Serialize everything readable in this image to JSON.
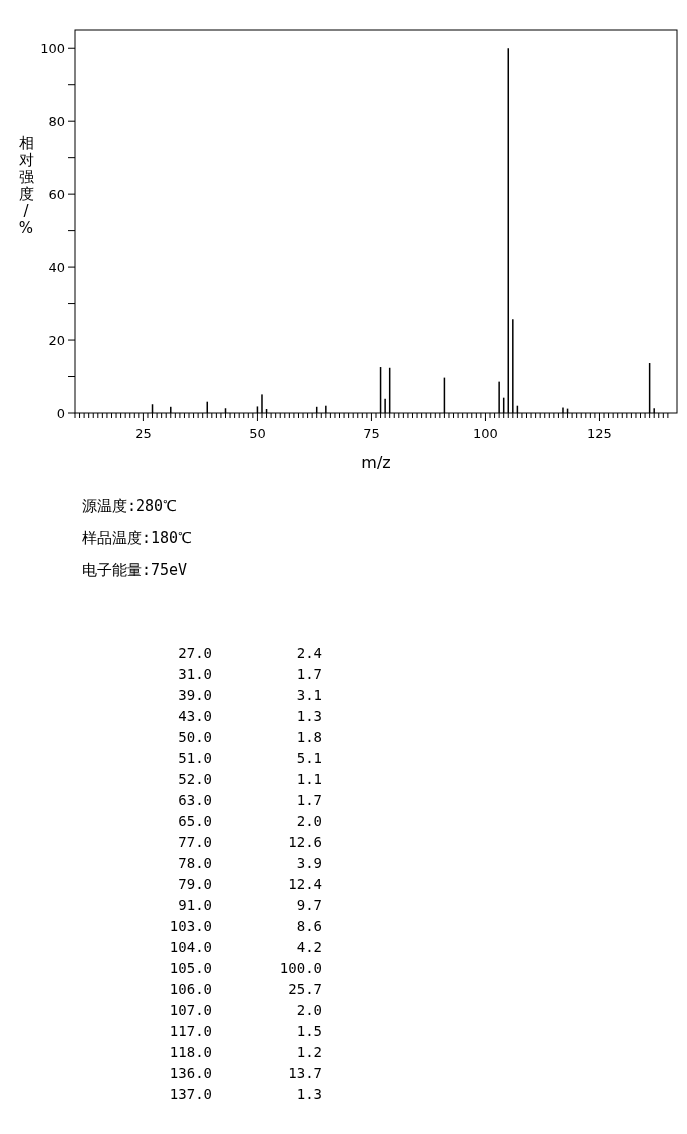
{
  "chart_data": {
    "type": "bar",
    "xlabel": "m/z",
    "ylabel": "相对强度/%",
    "x": [
      27,
      31,
      39,
      43,
      50,
      51,
      52,
      63,
      65,
      77,
      78,
      79,
      91,
      103,
      104,
      105,
      106,
      107,
      117,
      118,
      136,
      137
    ],
    "values": [
      2.4,
      1.7,
      3.1,
      1.3,
      1.8,
      5.1,
      1.1,
      1.7,
      2.0,
      12.6,
      3.9,
      12.4,
      9.7,
      8.6,
      4.2,
      100.0,
      25.7,
      2.0,
      1.5,
      1.2,
      13.7,
      1.3
    ],
    "color": "#000000",
    "xlim": [
      10,
      142
    ],
    "ylim": [
      0,
      105
    ],
    "yticks": [
      0,
      {
        "value": 10,
        "label": null
      },
      20,
      {
        "value": 30,
        "label": null
      },
      40,
      {
        "value": 50,
        "label": null
      },
      60,
      {
        "value": 70,
        "label": null
      },
      80,
      {
        "value": 90,
        "label": null
      },
      100
    ],
    "xticks": [
      {
        "value": 10,
        "label": null
      },
      {
        "value": 11,
        "label": null
      },
      {
        "value": 12,
        "label": null
      },
      {
        "value": 13,
        "label": null
      },
      {
        "value": 14,
        "label": null
      },
      {
        "value": 15,
        "label": null
      },
      {
        "value": 16,
        "label": null
      },
      {
        "value": 17,
        "label": null
      },
      {
        "value": 18,
        "label": null
      },
      {
        "value": 19,
        "label": null
      },
      {
        "value": 20,
        "label": null
      },
      {
        "value": 21,
        "label": null
      },
      {
        "value": 22,
        "label": null
      },
      {
        "value": 23,
        "label": null
      },
      {
        "value": 24,
        "label": null
      },
      25,
      {
        "value": 26,
        "label": null
      },
      {
        "value": 27,
        "label": null
      },
      {
        "value": 28,
        "label": null
      },
      {
        "value": 29,
        "label": null
      },
      {
        "value": 30,
        "label": null
      },
      {
        "value": 31,
        "label": null
      },
      {
        "value": 32,
        "label": null
      },
      {
        "value": 33,
        "label": null
      },
      {
        "value": 34,
        "label": null
      },
      {
        "value": 35,
        "label": null
      },
      {
        "value": 36,
        "label": null
      },
      {
        "value": 37,
        "label": null
      },
      {
        "value": 38,
        "label": null
      },
      {
        "value": 39,
        "label": null
      },
      {
        "value": 40,
        "label": null
      },
      {
        "value": 41,
        "label": null
      },
      {
        "value": 42,
        "label": null
      },
      {
        "value": 43,
        "label": null
      },
      {
        "value": 44,
        "label": null
      },
      {
        "value": 45,
        "label": null
      },
      {
        "value": 46,
        "label": null
      },
      {
        "value": 47,
        "label": null
      },
      {
        "value": 48,
        "label": null
      },
      {
        "value": 49,
        "label": null
      },
      50,
      {
        "value": 51,
        "label": null
      },
      {
        "value": 52,
        "label": null
      },
      {
        "value": 53,
        "label": null
      },
      {
        "value": 54,
        "label": null
      },
      {
        "value": 55,
        "label": null
      },
      {
        "value": 56,
        "label": null
      },
      {
        "value": 57,
        "label": null
      },
      {
        "value": 58,
        "label": null
      },
      {
        "value": 59,
        "label": null
      },
      {
        "value": 60,
        "label": null
      },
      {
        "value": 61,
        "label": null
      },
      {
        "value": 62,
        "label": null
      },
      {
        "value": 63,
        "label": null
      },
      {
        "value": 64,
        "label": null
      },
      {
        "value": 65,
        "label": null
      },
      {
        "value": 66,
        "label": null
      },
      {
        "value": 67,
        "label": null
      },
      {
        "value": 68,
        "label": null
      },
      {
        "value": 69,
        "label": null
      },
      {
        "value": 70,
        "label": null
      },
      {
        "value": 71,
        "label": null
      },
      {
        "value": 72,
        "label": null
      },
      {
        "value": 73,
        "label": null
      },
      {
        "value": 74,
        "label": null
      },
      75,
      {
        "value": 76,
        "label": null
      },
      {
        "value": 77,
        "label": null
      },
      {
        "value": 78,
        "label": null
      },
      {
        "value": 79,
        "label": null
      },
      {
        "value": 80,
        "label": null
      },
      {
        "value": 81,
        "label": null
      },
      {
        "value": 82,
        "label": null
      },
      {
        "value": 83,
        "label": null
      },
      {
        "value": 84,
        "label": null
      },
      {
        "value": 85,
        "label": null
      },
      {
        "value": 86,
        "label": null
      },
      {
        "value": 87,
        "label": null
      },
      {
        "value": 88,
        "label": null
      },
      {
        "value": 89,
        "label": null
      },
      {
        "value": 90,
        "label": null
      },
      {
        "value": 91,
        "label": null
      },
      {
        "value": 92,
        "label": null
      },
      {
        "value": 93,
        "label": null
      },
      {
        "value": 94,
        "label": null
      },
      {
        "value": 95,
        "label": null
      },
      {
        "value": 96,
        "label": null
      },
      {
        "value": 97,
        "label": null
      },
      {
        "value": 98,
        "label": null
      },
      {
        "value": 99,
        "label": null
      },
      100,
      {
        "value": 101,
        "label": null
      },
      {
        "value": 102,
        "label": null
      },
      {
        "value": 103,
        "label": null
      },
      {
        "value": 104,
        "label": null
      },
      {
        "value": 105,
        "label": null
      },
      {
        "value": 106,
        "label": null
      },
      {
        "value": 107,
        "label": null
      },
      {
        "value": 108,
        "label": null
      },
      {
        "value": 109,
        "label": null
      },
      {
        "value": 110,
        "label": null
      },
      {
        "value": 111,
        "label": null
      },
      {
        "value": 112,
        "label": null
      },
      {
        "value": 113,
        "label": null
      },
      {
        "value": 114,
        "label": null
      },
      {
        "value": 115,
        "label": null
      },
      {
        "value": 116,
        "label": null
      },
      {
        "value": 117,
        "label": null
      },
      {
        "value": 118,
        "label": null
      },
      {
        "value": 119,
        "label": null
      },
      {
        "value": 120,
        "label": null
      },
      {
        "value": 121,
        "label": null
      },
      {
        "value": 122,
        "label": null
      },
      {
        "value": 123,
        "label": null
      },
      {
        "value": 124,
        "label": null
      },
      125,
      {
        "value": 126,
        "label": null
      },
      {
        "value": 127,
        "label": null
      },
      {
        "value": 128,
        "label": null
      },
      {
        "value": 129,
        "label": null
      },
      {
        "value": 130,
        "label": null
      },
      {
        "value": 131,
        "label": null
      },
      {
        "value": 132,
        "label": null
      },
      {
        "value": 133,
        "label": null
      },
      {
        "value": 134,
        "label": null
      },
      {
        "value": 135,
        "label": null
      },
      {
        "value": 136,
        "label": null
      },
      {
        "value": 137,
        "label": null
      },
      {
        "value": 138,
        "label": null
      },
      {
        "value": 139,
        "label": null
      },
      {
        "value": 140,
        "label": null
      }
    ],
    "annotations": [
      "源温度:280℃",
      "样品温度:180℃",
      "电子能量:75eV",
      "27.0 2.4",
      "31.0 1.7",
      "39.0 3.1",
      "43.0 1.3",
      "50.0 1.8",
      "51.0 5.1",
      "52.0 1.1",
      "63.0 1.7",
      "65.0 2.0",
      "77.0 12.6",
      "78.0 3.9",
      "79.0 12.4",
      "91.0 9.7",
      "103.0 8.6",
      "104.0 4.2",
      "105.0 100.0",
      "106.0 25.7",
      "107.0 2.0",
      "117.0 1.5",
      "118.0 1.2",
      "136.0 13.7",
      "137.0 1.3"
    ]
  }
}
